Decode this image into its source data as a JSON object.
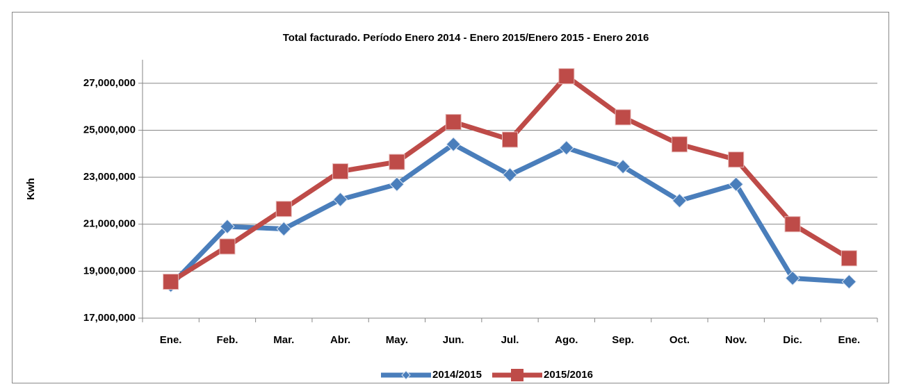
{
  "chart_data": {
    "type": "line",
    "title": "Total facturado. Período Enero 2014 - Enero 2015/Enero 2015 - Enero 2016",
    "y_label": "Kwh",
    "categories": [
      "Ene.",
      "Feb.",
      "Mar.",
      "Abr.",
      "May.",
      "Jun.",
      "Jul.",
      "Ago.",
      "Sep.",
      "Oct.",
      "Nov.",
      "Dic.",
      "Ene."
    ],
    "series": [
      {
        "name": "2014/2015",
        "color": "#4a7ebb",
        "marker": "diamond",
        "values": [
          18400000,
          20900000,
          20800000,
          22050000,
          22700000,
          24400000,
          23100000,
          24250000,
          23450000,
          22000000,
          22700000,
          18700000,
          18550000
        ]
      },
      {
        "name": "2015/2016",
        "color": "#be4b48",
        "marker": "square",
        "values": [
          18550000,
          20050000,
          21650000,
          23250000,
          23650000,
          25350000,
          24600000,
          27300000,
          25550000,
          24400000,
          23750000,
          21000000,
          19550000
        ]
      }
    ],
    "ylim": [
      17000000,
      28000000
    ],
    "yticks": [
      {
        "value": 17000000,
        "label": "17,000,000"
      },
      {
        "value": 19000000,
        "label": "19,000,000"
      },
      {
        "value": 21000000,
        "label": "21,000,000"
      },
      {
        "value": 23000000,
        "label": "23,000,000"
      },
      {
        "value": 25000000,
        "label": "25,000,000"
      },
      {
        "value": 27000000,
        "label": "27,000,000"
      }
    ],
    "grid": true,
    "legend": "bottom"
  }
}
